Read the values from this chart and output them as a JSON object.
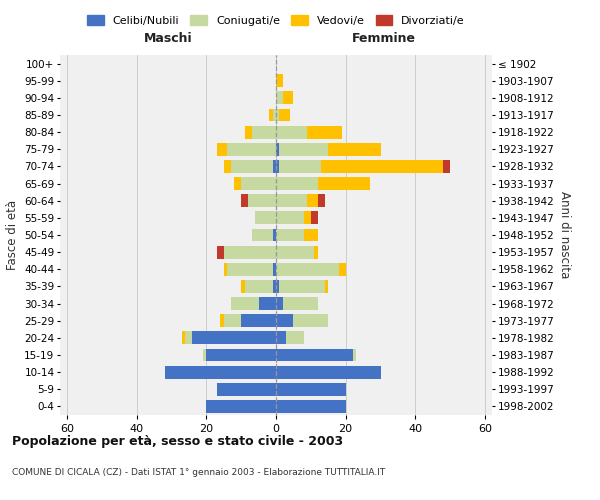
{
  "age_groups": [
    "0-4",
    "5-9",
    "10-14",
    "15-19",
    "20-24",
    "25-29",
    "30-34",
    "35-39",
    "40-44",
    "45-49",
    "50-54",
    "55-59",
    "60-64",
    "65-69",
    "70-74",
    "75-79",
    "80-84",
    "85-89",
    "90-94",
    "95-99",
    "100+"
  ],
  "birth_years": [
    "1998-2002",
    "1993-1997",
    "1988-1992",
    "1983-1987",
    "1978-1982",
    "1973-1977",
    "1968-1972",
    "1963-1967",
    "1958-1962",
    "1953-1957",
    "1948-1952",
    "1943-1947",
    "1938-1942",
    "1933-1937",
    "1928-1932",
    "1923-1927",
    "1918-1922",
    "1913-1917",
    "1908-1912",
    "1903-1907",
    "≤ 1902"
  ],
  "maschi": {
    "celibi": [
      20,
      17,
      32,
      20,
      24,
      10,
      5,
      1,
      1,
      0,
      1,
      0,
      0,
      0,
      1,
      0,
      0,
      0,
      0,
      0,
      0
    ],
    "coniugati": [
      0,
      0,
      0,
      1,
      2,
      5,
      8,
      8,
      13,
      15,
      6,
      6,
      8,
      10,
      12,
      14,
      7,
      1,
      0,
      0,
      0
    ],
    "vedovi": [
      0,
      0,
      0,
      0,
      1,
      1,
      0,
      1,
      1,
      0,
      0,
      0,
      0,
      2,
      2,
      3,
      2,
      1,
      0,
      0,
      0
    ],
    "divorziati": [
      0,
      0,
      0,
      0,
      0,
      0,
      0,
      0,
      0,
      2,
      0,
      0,
      2,
      0,
      0,
      0,
      0,
      0,
      0,
      0,
      0
    ]
  },
  "femmine": {
    "nubili": [
      20,
      20,
      30,
      22,
      3,
      5,
      2,
      1,
      0,
      0,
      0,
      0,
      0,
      0,
      1,
      1,
      0,
      0,
      0,
      0,
      0
    ],
    "coniugate": [
      0,
      0,
      0,
      1,
      5,
      10,
      10,
      13,
      18,
      11,
      8,
      8,
      9,
      12,
      12,
      14,
      9,
      1,
      2,
      0,
      0
    ],
    "vedove": [
      0,
      0,
      0,
      0,
      0,
      0,
      0,
      1,
      2,
      1,
      4,
      2,
      3,
      15,
      35,
      15,
      10,
      3,
      3,
      2,
      0
    ],
    "divorziate": [
      0,
      0,
      0,
      0,
      0,
      0,
      0,
      0,
      0,
      0,
      0,
      2,
      2,
      0,
      2,
      0,
      0,
      0,
      0,
      0,
      0
    ]
  },
  "colors": {
    "celibi": "#4472c4",
    "coniugati": "#c5d9a0",
    "vedovi": "#ffc000",
    "divorziati": "#c0392b"
  },
  "title": "Popolazione per età, sesso e stato civile - 2003",
  "subtitle": "COMUNE DI CICALA (CZ) - Dati ISTAT 1° gennaio 2003 - Elaborazione TUTTITALIA.IT",
  "xlabel_left": "Maschi",
  "xlabel_right": "Femmine",
  "ylabel_left": "Fasce di età",
  "ylabel_right": "Anni di nascita",
  "xlim": 62,
  "background_color": "#ffffff",
  "grid_color": "#cccccc"
}
